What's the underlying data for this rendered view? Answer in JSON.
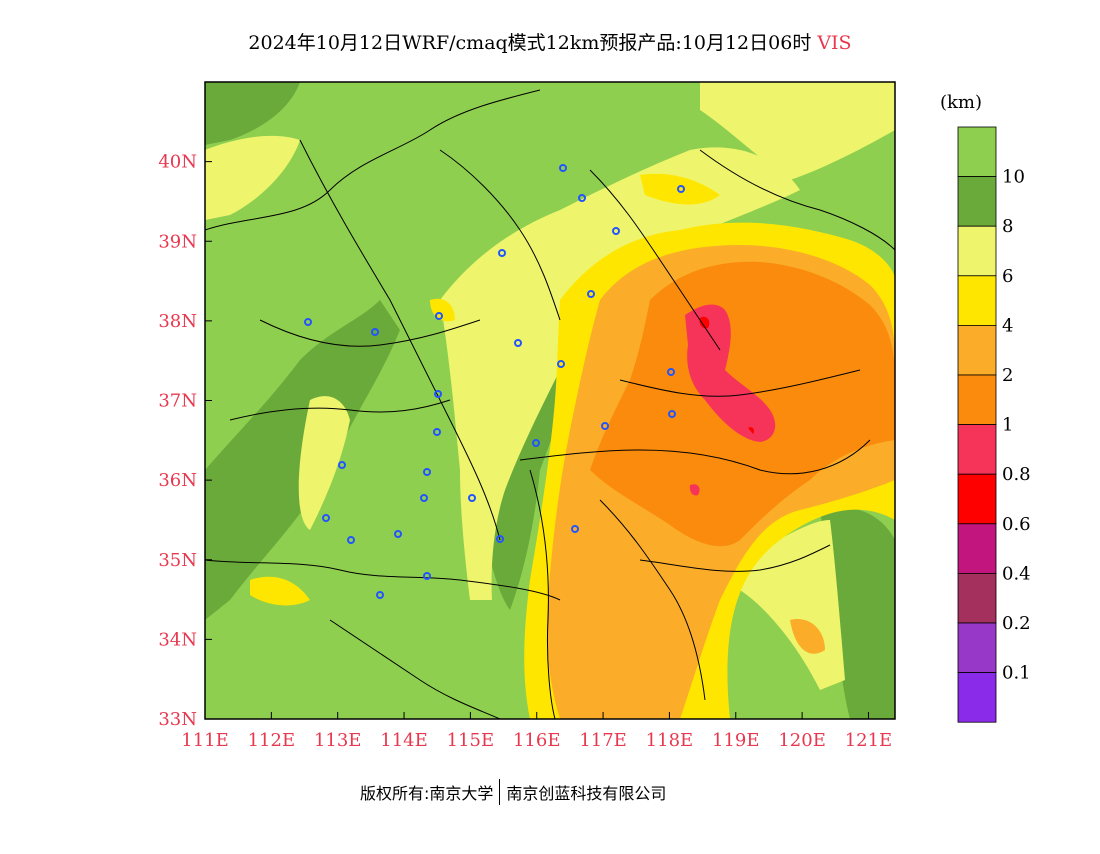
{
  "title": {
    "main": "2024年10月12日WRF/cmaq模式12km预报产品:10月12日06时",
    "variable": "VIS"
  },
  "map": {
    "x_ticks": [
      "111E",
      "112E",
      "113E",
      "114E",
      "115E",
      "116E",
      "117E",
      "118E",
      "119E",
      "120E",
      "121E"
    ],
    "y_ticks": [
      "33N",
      "34N",
      "35N",
      "36N",
      "37N",
      "38N",
      "39N",
      "40N"
    ],
    "lon_range": [
      111,
      121.4
    ],
    "lat_range": [
      33,
      41
    ]
  },
  "colorbar": {
    "unit": "(km)",
    "labels": [
      "10",
      "8",
      "6",
      "4",
      "2",
      "1",
      "0.8",
      "0.6",
      "0.4",
      "0.2",
      "0.1"
    ],
    "colors": [
      "#8fcf50",
      "#6aaa3a",
      "#eef56c",
      "#ffe600",
      "#fbad2a",
      "#fb8b0c",
      "#f6345a",
      "#ff0000",
      "#c2167e",
      "#a3305d",
      "#9738c8",
      "#8a2bea"
    ]
  },
  "footer": {
    "left": "版权所有:南京大学",
    "right": "南京创蓝科技有限公司"
  },
  "colors": {
    "label_red": "#e8384f",
    "station_blue": "#2255ff"
  }
}
